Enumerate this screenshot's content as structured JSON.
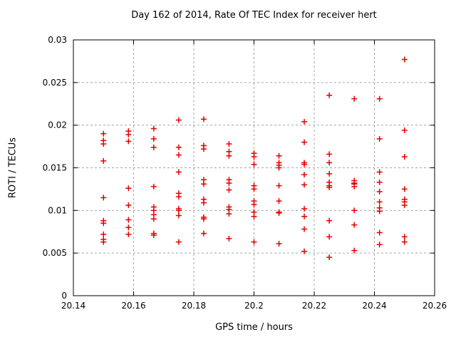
{
  "window": {
    "background": "#ffffff"
  },
  "chart_data": {
    "type": "scatter",
    "title": "Day 162 of 2014, Rate Of TEC Index for receiver hert",
    "xlabel": "GPS time / hours",
    "ylabel": "ROTI / TECUs",
    "xlim": [
      20.14,
      20.26
    ],
    "ylim": [
      0,
      0.03
    ],
    "xticks": [
      20.14,
      20.16,
      20.18,
      20.2,
      20.22,
      20.24,
      20.26
    ],
    "xtick_labels": [
      "20.14",
      "20.16",
      "20.18",
      "20.2",
      "20.22",
      "20.24",
      "20.26"
    ],
    "yticks": [
      0,
      0.005,
      0.01,
      0.015,
      0.02,
      0.025,
      0.03
    ],
    "ytick_labels": [
      "0",
      "0.005",
      "0.01",
      "0.015",
      "0.02",
      "0.025",
      "0.03"
    ],
    "grid": "dashed",
    "legend": "none",
    "marker": "plus",
    "marker_color": "#e60000",
    "grid_color": "#a6a6a6",
    "axis_color": "#000000",
    "series": [
      {
        "name": "ROTI",
        "points": [
          [
            20.15,
            0.019
          ],
          [
            20.15,
            0.0182
          ],
          [
            20.15,
            0.0178
          ],
          [
            20.15,
            0.0158
          ],
          [
            20.15,
            0.0115
          ],
          [
            20.15,
            0.0088
          ],
          [
            20.15,
            0.0085
          ],
          [
            20.15,
            0.0072
          ],
          [
            20.15,
            0.0066
          ],
          [
            20.15,
            0.0063
          ],
          [
            20.1583,
            0.0193
          ],
          [
            20.1583,
            0.0189
          ],
          [
            20.1583,
            0.0181
          ],
          [
            20.1583,
            0.0126
          ],
          [
            20.1583,
            0.0106
          ],
          [
            20.1583,
            0.0089
          ],
          [
            20.1583,
            0.008
          ],
          [
            20.1583,
            0.0072
          ],
          [
            20.1667,
            0.0196
          ],
          [
            20.1667,
            0.0184
          ],
          [
            20.1667,
            0.0174
          ],
          [
            20.1667,
            0.0128
          ],
          [
            20.1667,
            0.0104
          ],
          [
            20.1667,
            0.01
          ],
          [
            20.1667,
            0.0095
          ],
          [
            20.1667,
            0.009
          ],
          [
            20.1667,
            0.0073
          ],
          [
            20.1667,
            0.0071
          ],
          [
            20.175,
            0.0206
          ],
          [
            20.175,
            0.0174
          ],
          [
            20.175,
            0.0165
          ],
          [
            20.175,
            0.0145
          ],
          [
            20.175,
            0.012
          ],
          [
            20.175,
            0.0116
          ],
          [
            20.175,
            0.0102
          ],
          [
            20.175,
            0.01
          ],
          [
            20.175,
            0.0094
          ],
          [
            20.175,
            0.0063
          ],
          [
            20.1833,
            0.0207
          ],
          [
            20.1833,
            0.0176
          ],
          [
            20.1833,
            0.0172
          ],
          [
            20.1833,
            0.0136
          ],
          [
            20.1833,
            0.0131
          ],
          [
            20.1833,
            0.0113
          ],
          [
            20.1833,
            0.0109
          ],
          [
            20.1833,
            0.0092
          ],
          [
            20.1833,
            0.009
          ],
          [
            20.1833,
            0.0073
          ],
          [
            20.1917,
            0.0178
          ],
          [
            20.1917,
            0.0169
          ],
          [
            20.1917,
            0.0164
          ],
          [
            20.1917,
            0.0136
          ],
          [
            20.1917,
            0.0132
          ],
          [
            20.1917,
            0.0124
          ],
          [
            20.1917,
            0.0104
          ],
          [
            20.1917,
            0.0101
          ],
          [
            20.1917,
            0.0096
          ],
          [
            20.1917,
            0.0067
          ],
          [
            20.2,
            0.0167
          ],
          [
            20.2,
            0.0163
          ],
          [
            20.2,
            0.0154
          ],
          [
            20.2,
            0.0129
          ],
          [
            20.2,
            0.0125
          ],
          [
            20.2,
            0.0111
          ],
          [
            20.2,
            0.0107
          ],
          [
            20.2,
            0.0098
          ],
          [
            20.2,
            0.0093
          ],
          [
            20.2,
            0.0063
          ],
          [
            20.2083,
            0.0164
          ],
          [
            20.2083,
            0.0156
          ],
          [
            20.2083,
            0.0153
          ],
          [
            20.2083,
            0.015
          ],
          [
            20.2083,
            0.0129
          ],
          [
            20.2083,
            0.0111
          ],
          [
            20.2083,
            0.0098
          ],
          [
            20.2083,
            0.0097
          ],
          [
            20.2083,
            0.0061
          ],
          [
            20.2167,
            0.0204
          ],
          [
            20.2167,
            0.018
          ],
          [
            20.2167,
            0.0156
          ],
          [
            20.2167,
            0.0154
          ],
          [
            20.2167,
            0.0142
          ],
          [
            20.2167,
            0.013
          ],
          [
            20.2167,
            0.0102
          ],
          [
            20.2167,
            0.0093
          ],
          [
            20.2167,
            0.0078
          ],
          [
            20.2167,
            0.0052
          ],
          [
            20.225,
            0.0235
          ],
          [
            20.225,
            0.0166
          ],
          [
            20.225,
            0.0156
          ],
          [
            20.225,
            0.0143
          ],
          [
            20.225,
            0.0133
          ],
          [
            20.225,
            0.0129
          ],
          [
            20.225,
            0.0127
          ],
          [
            20.225,
            0.0088
          ],
          [
            20.225,
            0.0069
          ],
          [
            20.225,
            0.0045
          ],
          [
            20.2333,
            0.0231
          ],
          [
            20.2333,
            0.0135
          ],
          [
            20.2333,
            0.0132
          ],
          [
            20.2333,
            0.0131
          ],
          [
            20.2333,
            0.0128
          ],
          [
            20.2333,
            0.01
          ],
          [
            20.2333,
            0.0083
          ],
          [
            20.2333,
            0.0053
          ],
          [
            20.2417,
            0.0231
          ],
          [
            20.2417,
            0.0184
          ],
          [
            20.2417,
            0.0145
          ],
          [
            20.2417,
            0.0133
          ],
          [
            20.2417,
            0.0122
          ],
          [
            20.2417,
            0.011
          ],
          [
            20.2417,
            0.0103
          ],
          [
            20.2417,
            0.0099
          ],
          [
            20.2417,
            0.0074
          ],
          [
            20.2417,
            0.006
          ],
          [
            20.25,
            0.0277
          ],
          [
            20.25,
            0.0194
          ],
          [
            20.25,
            0.0163
          ],
          [
            20.25,
            0.0125
          ],
          [
            20.25,
            0.0113
          ],
          [
            20.25,
            0.011
          ],
          [
            20.25,
            0.0106
          ],
          [
            20.25,
            0.0069
          ],
          [
            20.25,
            0.0063
          ]
        ]
      }
    ]
  }
}
